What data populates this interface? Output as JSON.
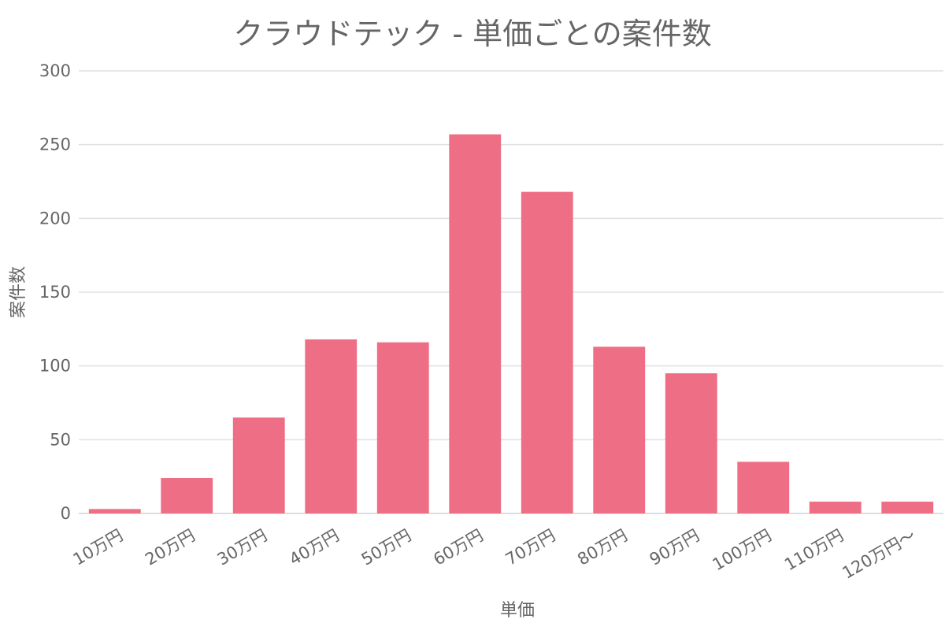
{
  "chart_data": {
    "type": "bar",
    "title": "クラウドテック - 単価ごとの案件数",
    "xlabel": "単価",
    "ylabel": "案件数",
    "categories": [
      "10万円",
      "20万円",
      "30万円",
      "40万円",
      "50万円",
      "60万円",
      "70万円",
      "80万円",
      "90万円",
      "100万円",
      "110万円",
      "120万円〜"
    ],
    "values": [
      3,
      24,
      65,
      118,
      116,
      257,
      218,
      113,
      95,
      35,
      8,
      8
    ],
    "ylim": [
      0,
      300
    ],
    "yticks": [
      0,
      50,
      100,
      150,
      200,
      250,
      300
    ],
    "grid": true,
    "legend": "none",
    "colors": {
      "bar": "#ee6e86",
      "grid": "#e0e0e0",
      "text": "#666666"
    }
  }
}
